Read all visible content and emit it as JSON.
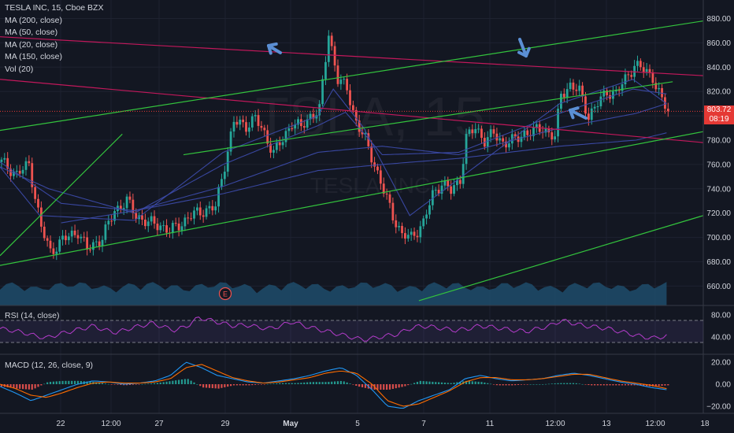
{
  "header": {
    "title": "TESLA INC, 15, Cboe BZX",
    "indicators": [
      "MA (200, close)",
      "MA (50, close)",
      "MA (20, close)",
      "MA (150, close)",
      "Vol (20)"
    ]
  },
  "watermark": {
    "symbol": "TSLA, 15",
    "name": "TESLA, INC"
  },
  "price_tag": {
    "value": "803.72",
    "countdown": "08:19"
  },
  "earnings_marker": "E",
  "rsi_label": "RSI (14, close)",
  "macd_label": "MACD (12, 26, close, 9)",
  "colors": {
    "background": "#131722",
    "grid": "#1e2230",
    "up": "#26a69a",
    "down": "#ef5350",
    "ma_lines": "#3b4aa8",
    "trend_red": "#c2185b",
    "trend_green": "#33c33d",
    "arrow": "#5b8fd4",
    "rsi": "#b43ccb",
    "volume": "#1f4c6b",
    "macd": "#2196f3",
    "signal": "#ff6d00",
    "price_tag": "#e53935"
  },
  "chart_data": [
    {
      "type": "candlestick",
      "name": "price",
      "x_ticks": [
        "22",
        "12:00",
        "27",
        "29",
        "May",
        "5",
        "7",
        "11",
        "12:00",
        "13",
        "12:00",
        "18"
      ],
      "y_ticks": [
        660,
        680,
        700,
        720,
        740,
        760,
        780,
        800,
        820,
        840,
        860,
        880
      ],
      "ylim": [
        648,
        888
      ],
      "close_path": [
        [
          0,
          762
        ],
        [
          5,
          752
        ],
        [
          9,
          760
        ],
        [
          13,
          708
        ],
        [
          16,
          688
        ],
        [
          20,
          698
        ],
        [
          25,
          705
        ],
        [
          28,
          690
        ],
        [
          33,
          700
        ],
        [
          37,
          722
        ],
        [
          41,
          730
        ],
        [
          44,
          718
        ],
        [
          48,
          712
        ],
        [
          52,
          710
        ],
        [
          55,
          705
        ],
        [
          59,
          712
        ],
        [
          62,
          718
        ],
        [
          66,
          722
        ],
        [
          70,
          725
        ],
        [
          73,
          760
        ],
        [
          76,
          795
        ],
        [
          80,
          792
        ],
        [
          83,
          798
        ],
        [
          86,
          785
        ],
        [
          89,
          770
        ],
        [
          92,
          780
        ],
        [
          95,
          795
        ],
        [
          98,
          790
        ],
        [
          101,
          800
        ],
        [
          104,
          805
        ],
        [
          107,
          868
        ],
        [
          110,
          830
        ],
        [
          113,
          822
        ],
        [
          116,
          795
        ],
        [
          119,
          780
        ],
        [
          122,
          760
        ],
        [
          125,
          738
        ],
        [
          128,
          718
        ],
        [
          131,
          702
        ],
        [
          134,
          700
        ],
        [
          138,
          712
        ],
        [
          141,
          735
        ],
        [
          144,
          745
        ],
        [
          147,
          738
        ],
        [
          150,
          748
        ],
        [
          152,
          782
        ],
        [
          155,
          790
        ],
        [
          158,
          780
        ],
        [
          161,
          785
        ],
        [
          164,
          778
        ],
        [
          168,
          780
        ],
        [
          171,
          786
        ],
        [
          174,
          787
        ],
        [
          177,
          790
        ],
        [
          181,
          782
        ],
        [
          183,
          818
        ],
        [
          186,
          825
        ],
        [
          189,
          820
        ],
        [
          192,
          800
        ],
        [
          195,
          810
        ],
        [
          198,
          820
        ],
        [
          201,
          818
        ],
        [
          204,
          830
        ],
        [
          207,
          842
        ],
        [
          210,
          838
        ],
        [
          213,
          832
        ],
        [
          216,
          812
        ],
        [
          218,
          804
        ]
      ],
      "moving_averages": [
        {
          "name": "MA (200, close)",
          "path": [
            [
              20,
              712
            ],
            [
              44,
              722
            ],
            [
              73,
              736
            ],
            [
              104,
              755
            ],
            [
              125,
              760
            ],
            [
              150,
              765
            ],
            [
              183,
              775
            ],
            [
              208,
              780
            ],
            [
              218,
              786
            ]
          ]
        },
        {
          "name": "MA (150, close)",
          "path": [
            [
              0,
              762
            ],
            [
              20,
              728
            ],
            [
              44,
              722
            ],
            [
              73,
              742
            ],
            [
              104,
              770
            ],
            [
              125,
              775
            ],
            [
              150,
              768
            ],
            [
              183,
              790
            ],
            [
              208,
              802
            ],
            [
              218,
              810
            ]
          ]
        },
        {
          "name": "MA (50, close)",
          "path": [
            [
              0,
              758
            ],
            [
              16,
              740
            ],
            [
              44,
              720
            ],
            [
              73,
              760
            ],
            [
              104,
              792
            ],
            [
              113,
              803
            ],
            [
              125,
              768
            ],
            [
              150,
              770
            ],
            [
              183,
              802
            ],
            [
              207,
              822
            ],
            [
              218,
              818
            ]
          ]
        },
        {
          "name": "MA (20, close)",
          "path": [
            [
              0,
              758
            ],
            [
              13,
              718
            ],
            [
              44,
              714
            ],
            [
              73,
              770
            ],
            [
              104,
              800
            ],
            [
              109,
              822
            ],
            [
              119,
              790
            ],
            [
              134,
              718
            ],
            [
              150,
              748
            ],
            [
              183,
              810
            ],
            [
              207,
              830
            ],
            [
              218,
              810
            ]
          ]
        }
      ],
      "trend_lines": [
        {
          "color": "red",
          "from": [
            0,
            865
          ],
          "to": [
            230,
            833
          ]
        },
        {
          "color": "red",
          "from": [
            0,
            830
          ],
          "to": [
            230,
            778
          ]
        },
        {
          "color": "green",
          "from": [
            0,
            788
          ],
          "to": [
            230,
            878
          ]
        },
        {
          "color": "green",
          "from": [
            60,
            768
          ],
          "to": [
            220,
            828
          ]
        },
        {
          "color": "green",
          "from": [
            0,
            677
          ],
          "to": [
            230,
            787
          ]
        },
        {
          "color": "green",
          "from": [
            0,
            685
          ],
          "to": [
            40,
            785
          ]
        },
        {
          "color": "green",
          "from": [
            137,
            648
          ],
          "to": [
            230,
            718
          ]
        }
      ],
      "last_price": 803.72
    },
    {
      "type": "line",
      "name": "RSI (14, close)",
      "y_ticks": [
        40,
        80
      ],
      "ylim": [
        25,
        90
      ],
      "bands": [
        70,
        30
      ],
      "values": [
        55,
        52,
        48,
        42,
        38,
        45,
        50,
        55,
        60,
        52,
        48,
        55,
        60,
        65,
        58,
        52,
        60,
        75,
        70,
        65,
        60,
        62,
        58,
        55,
        60,
        68,
        60,
        55,
        50,
        45,
        40,
        35,
        38,
        42,
        45,
        55,
        60,
        58,
        55,
        52,
        55,
        60,
        58,
        55,
        52,
        50,
        55,
        60,
        70,
        65,
        60,
        58,
        55,
        50,
        45,
        40,
        38,
        42
      ]
    },
    {
      "type": "bar+line",
      "name": "MACD (12, 26, close, 9)",
      "y_ticks": [
        20,
        0,
        -20
      ],
      "y_tick_labels": [
        "20.00",
        "0.00",
        "−20.00"
      ],
      "ylim": [
        -28,
        28
      ],
      "macd": [
        -2,
        -8,
        -15,
        -10,
        -5,
        0,
        3,
        2,
        0,
        1,
        3,
        8,
        20,
        15,
        8,
        5,
        2,
        1,
        3,
        5,
        8,
        12,
        15,
        8,
        -5,
        -20,
        -22,
        -15,
        -10,
        -5,
        5,
        8,
        5,
        3,
        4,
        5,
        8,
        10,
        8,
        5,
        2,
        0,
        -3,
        -5
      ],
      "signal": [
        0,
        -4,
        -10,
        -12,
        -8,
        -3,
        1,
        2,
        1,
        1,
        2,
        5,
        15,
        18,
        12,
        6,
        3,
        1,
        2,
        4,
        6,
        10,
        12,
        10,
        0,
        -15,
        -20,
        -18,
        -12,
        -6,
        2,
        6,
        6,
        4,
        4,
        5,
        7,
        9,
        9,
        6,
        3,
        1,
        -1,
        -4
      ]
    }
  ]
}
